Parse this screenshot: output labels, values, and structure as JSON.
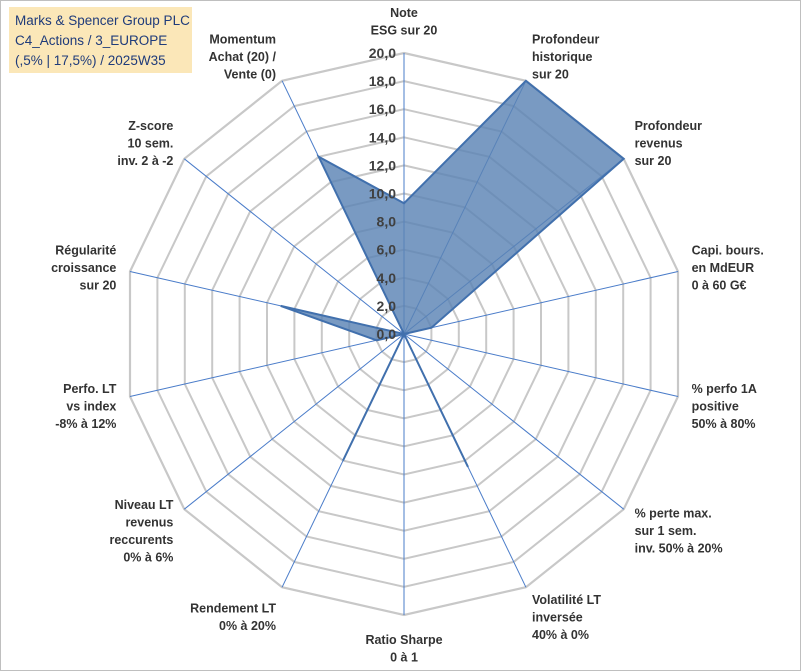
{
  "colors": {
    "grid": "#c8c8c8",
    "spoke": "#4a7cc9",
    "series_fill": "#5b84b5",
    "series_stroke": "#4170ad",
    "title_bg": "#fbe7b8",
    "title_text": "#1f3b7a"
  },
  "title_box": {
    "line1": "Marks & Spencer Group PLC",
    "line2": "C4_Actions / 3_EUROPE",
    "line3": "(,5% | 17,5%) / 2025W35"
  },
  "chart_data": {
    "type": "radar",
    "rmin": 0,
    "rmax": 20,
    "ticks": [
      "0,0",
      "2,0",
      "4,0",
      "6,0",
      "8,0",
      "10,0",
      "12,0",
      "14,0",
      "16,0",
      "18,0",
      "20,0"
    ],
    "grid": true,
    "axes": [
      {
        "label": [
          "Note",
          "ESG sur 20"
        ]
      },
      {
        "label": [
          "Profondeur",
          "historique",
          "sur 20"
        ]
      },
      {
        "label": [
          "Profondeur",
          "revenus",
          "sur 20"
        ]
      },
      {
        "label": [
          "Capi. bours.",
          "en MdEUR",
          "0 à 60 G€"
        ]
      },
      {
        "label": [
          "% perfo 1A",
          "positive",
          "50% à 80%"
        ]
      },
      {
        "label": [
          "% perte max.",
          "sur 1 sem.",
          "inv. 50% à 20%"
        ]
      },
      {
        "label": [
          "Volatilité LT",
          "inversée",
          "40% à 0%"
        ]
      },
      {
        "label": [
          "Ratio Sharpe",
          "0 à 1"
        ]
      },
      {
        "label": [
          "Rendement LT",
          "0% à 20%"
        ]
      },
      {
        "label": [
          "Niveau LT",
          "revenus",
          "reccurents",
          "0% à 6%"
        ]
      },
      {
        "label": [
          "Perfo. LT",
          "vs index",
          "-8% à 12%"
        ]
      },
      {
        "label": [
          "Régularité",
          "croissance",
          "sur 20"
        ]
      },
      {
        "label": [
          "Z-score",
          "10 sem.",
          "inv. 2 à -2"
        ]
      },
      {
        "label": [
          "Momentum",
          "Achat (20) /",
          "Vente (0)"
        ]
      }
    ],
    "series": [
      {
        "values": [
          9.3,
          20.0,
          20.0,
          2.0,
          0.0,
          0.0,
          10.5,
          0.0,
          10.0,
          0.0,
          2.0,
          9.0,
          0.0,
          14.0
        ]
      }
    ]
  }
}
